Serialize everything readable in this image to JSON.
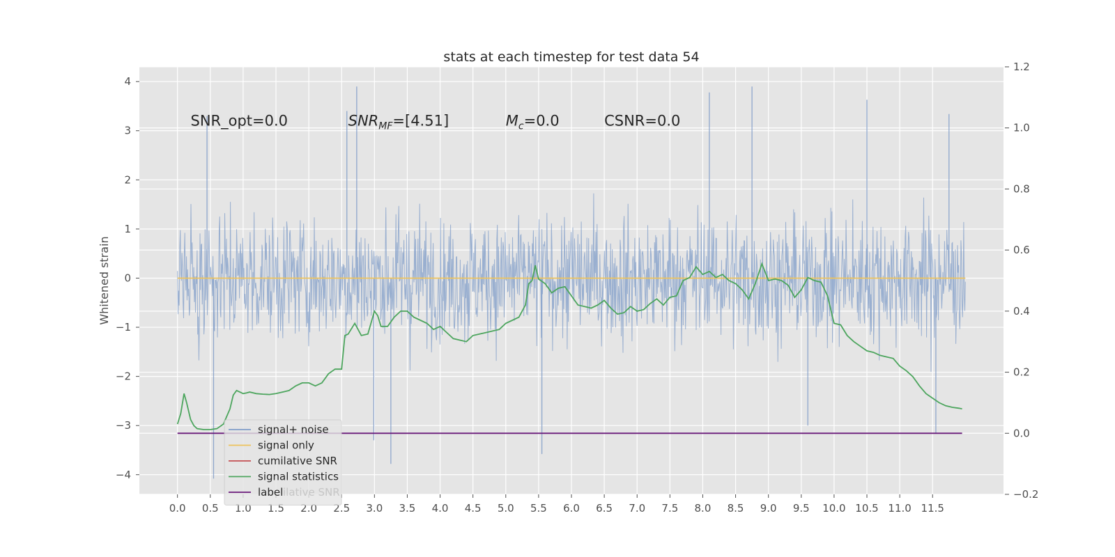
{
  "chart_data": {
    "type": "line",
    "title": "stats at each timestep for test data 54",
    "ylabel": "Whitened strain",
    "x_ticks": [
      "0.0",
      "0.5",
      "1.0",
      "1.5",
      "2.0",
      "2.5",
      "3.0",
      "3.5",
      "4.0",
      "4.5",
      "5.0",
      "5.5",
      "6.0",
      "6.5",
      "7.0",
      "7.5",
      "8.0",
      "8.5",
      "9.0",
      "9.5",
      "10.0",
      "10.5",
      "11.0",
      "11.5"
    ],
    "xlim": [
      -0.58,
      12.58
    ],
    "ylim_left": [
      -4.4,
      4.3
    ],
    "ylim_right": [
      -0.2,
      1.2
    ],
    "y_ticks_left": [
      "−4",
      "−3",
      "−2",
      "−1",
      "0",
      "1",
      "2",
      "3",
      "4"
    ],
    "y_ticks_right": [
      "−0.2",
      "0.0",
      "0.2",
      "0.4",
      "0.6",
      "0.8",
      "1.0",
      "1.2"
    ],
    "grid": true,
    "legend_position": "lower-left",
    "annotations": [
      {
        "text": "SNR_opt=0.0",
        "x": 0.2,
        "y": 3.1
      },
      {
        "text": "SNR_MF=[4.51]",
        "x": 2.6,
        "y": 3.1
      },
      {
        "text": "M_c=0.0",
        "x": 5.0,
        "y": 3.1
      },
      {
        "text": "CSNR=0.0",
        "x": 6.5,
        "y": 3.1
      }
    ],
    "series": [
      {
        "name": "signal+ noise",
        "axis": "left",
        "color": "#7f9cc8",
        "style": "dense noise",
        "x_range": [
          0.0,
          12.0
        ],
        "envelope_typical": [
          -2.0,
          2.0
        ],
        "peaks_high": [
          [
            2.73,
            3.9
          ],
          [
            8.75,
            3.9
          ],
          [
            10.5,
            3.63
          ],
          [
            8.1,
            3.78
          ],
          [
            11.75,
            3.34
          ],
          [
            2.58,
            3.4
          ],
          [
            0.45,
            3.3
          ]
        ],
        "peaks_low": [
          [
            0.55,
            -4.08
          ],
          [
            3.25,
            -3.78
          ],
          [
            5.55,
            -3.58
          ],
          [
            2.99,
            -3.3
          ],
          [
            11.55,
            -3.15
          ],
          [
            9.6,
            -3.0
          ]
        ]
      },
      {
        "name": "signal only",
        "axis": "left",
        "color": "#eec35b",
        "x": [
          0.0,
          12.0
        ],
        "y": [
          0.0,
          0.0
        ]
      },
      {
        "name": "cumilative SNR",
        "axis": "right",
        "color": "#c44e52",
        "x": [],
        "y": []
      },
      {
        "name": "signal statistics",
        "axis": "right",
        "color": "#4ca55d",
        "x": [
          0.0,
          0.05,
          0.1,
          0.14,
          0.2,
          0.25,
          0.3,
          0.4,
          0.5,
          0.6,
          0.7,
          0.8,
          0.85,
          0.9,
          0.95,
          1.0,
          1.05,
          1.1,
          1.2,
          1.3,
          1.4,
          1.5,
          1.6,
          1.7,
          1.8,
          1.9,
          2.0,
          2.1,
          2.2,
          2.3,
          2.4,
          2.5,
          2.55,
          2.6,
          2.7,
          2.8,
          2.9,
          3.0,
          3.05,
          3.1,
          3.2,
          3.3,
          3.4,
          3.5,
          3.6,
          3.7,
          3.8,
          3.9,
          4.0,
          4.1,
          4.2,
          4.3,
          4.4,
          4.5,
          4.6,
          4.7,
          4.8,
          4.9,
          5.0,
          5.1,
          5.2,
          5.3,
          5.35,
          5.4,
          5.45,
          5.5,
          5.6,
          5.7,
          5.8,
          5.9,
          6.0,
          6.1,
          6.2,
          6.3,
          6.4,
          6.5,
          6.6,
          6.7,
          6.8,
          6.9,
          7.0,
          7.1,
          7.2,
          7.3,
          7.4,
          7.5,
          7.6,
          7.7,
          7.8,
          7.9,
          8.0,
          8.1,
          8.2,
          8.3,
          8.4,
          8.5,
          8.6,
          8.7,
          8.8,
          8.9,
          9.0,
          9.1,
          9.2,
          9.3,
          9.4,
          9.5,
          9.6,
          9.7,
          9.8,
          9.9,
          10.0,
          10.1,
          10.2,
          10.3,
          10.4,
          10.5,
          10.6,
          10.7,
          10.8,
          10.9,
          11.0,
          11.1,
          11.2,
          11.3,
          11.4,
          11.5,
          11.6,
          11.7,
          11.8,
          11.9,
          11.95
        ],
        "y": [
          0.03,
          0.065,
          0.13,
          0.1,
          0.045,
          0.025,
          0.015,
          0.012,
          0.012,
          0.015,
          0.03,
          0.08,
          0.125,
          0.14,
          0.135,
          0.13,
          0.132,
          0.135,
          0.13,
          0.128,
          0.127,
          0.13,
          0.135,
          0.14,
          0.155,
          0.165,
          0.165,
          0.155,
          0.165,
          0.195,
          0.21,
          0.21,
          0.32,
          0.325,
          0.36,
          0.32,
          0.325,
          0.4,
          0.385,
          0.35,
          0.35,
          0.38,
          0.4,
          0.4,
          0.38,
          0.37,
          0.36,
          0.34,
          0.35,
          0.33,
          0.31,
          0.305,
          0.3,
          0.32,
          0.325,
          0.33,
          0.335,
          0.34,
          0.36,
          0.37,
          0.38,
          0.42,
          0.49,
          0.5,
          0.55,
          0.505,
          0.49,
          0.46,
          0.475,
          0.48,
          0.45,
          0.42,
          0.415,
          0.41,
          0.42,
          0.435,
          0.41,
          0.39,
          0.395,
          0.415,
          0.4,
          0.405,
          0.425,
          0.44,
          0.42,
          0.445,
          0.45,
          0.5,
          0.51,
          0.545,
          0.52,
          0.53,
          0.51,
          0.52,
          0.5,
          0.49,
          0.47,
          0.44,
          0.49,
          0.555,
          0.5,
          0.505,
          0.5,
          0.485,
          0.445,
          0.47,
          0.51,
          0.5,
          0.495,
          0.45,
          0.36,
          0.355,
          0.32,
          0.3,
          0.285,
          0.27,
          0.265,
          0.255,
          0.25,
          0.245,
          0.22,
          0.205,
          0.185,
          0.155,
          0.13,
          0.115,
          0.1,
          0.09,
          0.085,
          0.082,
          0.08
        ]
      },
      {
        "name": "label",
        "axis": "right",
        "color": "#6a1b7a",
        "x": [
          0.0,
          11.95
        ],
        "y": [
          0.0,
          0.0
        ]
      }
    ],
    "legend_extra_text": "cumilative SNR"
  }
}
